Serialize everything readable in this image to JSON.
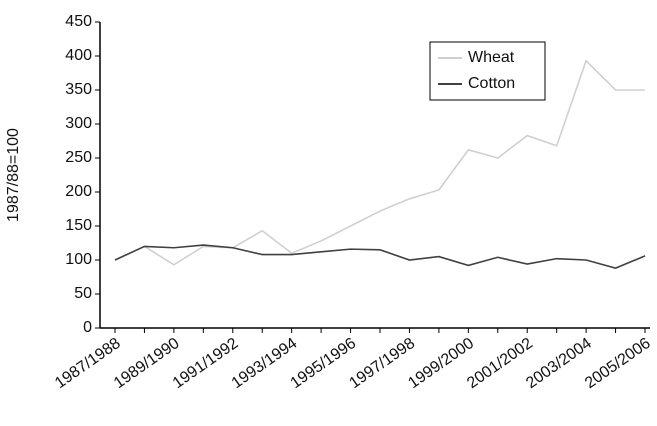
{
  "chart_data": {
    "type": "line",
    "y_label": "1987/88=100",
    "categories": [
      "1987/1988",
      null,
      "1989/1990",
      null,
      "1991/1992",
      null,
      "1993/1994",
      null,
      "1995/1996",
      null,
      "1997/1998",
      null,
      "1999/2000",
      null,
      "2001/2002",
      null,
      "2003/2004",
      null,
      "2005/2006"
    ],
    "series": [
      {
        "name": "Wheat",
        "color": "#d0d0d0",
        "values": [
          100,
          120,
          93,
          120,
          118,
          143,
          110,
          128,
          150,
          172,
          190,
          203,
          262,
          250,
          283,
          268,
          393,
          350,
          350
        ]
      },
      {
        "name": "Cotton",
        "color": "#404040",
        "values": [
          100,
          120,
          118,
          122,
          118,
          108,
          108,
          112,
          116,
          115,
          100,
          105,
          92,
          104,
          94,
          102,
          100,
          88,
          106
        ]
      }
    ],
    "ylim": [
      0,
      450
    ],
    "yticks": [
      0,
      50,
      100,
      150,
      200,
      250,
      300,
      350,
      400,
      450
    ],
    "grid": false,
    "legend": "upper right"
  }
}
